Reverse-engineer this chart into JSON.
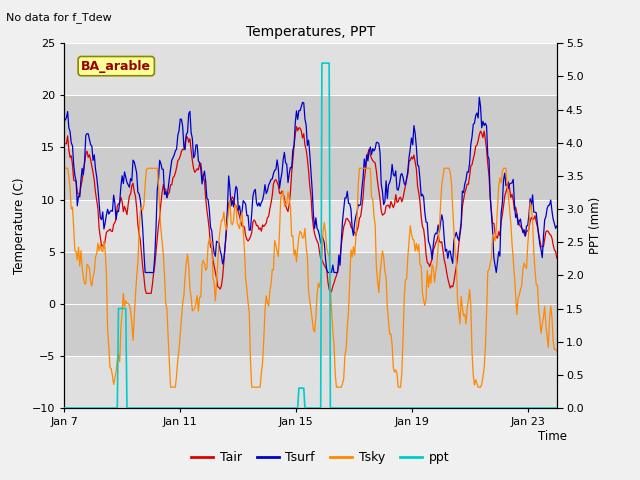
{
  "title": "Temperatures, PPT",
  "top_left_text": "No data for f_Tdew",
  "box_label": "BA_arable",
  "xlabel": "Time",
  "ylabel_left": "Temperature (C)",
  "ylabel_right": "PPT (mm)",
  "ylim_left": [
    -10,
    25
  ],
  "ylim_right": [
    0.0,
    5.5
  ],
  "yticks_left": [
    -10,
    -5,
    0,
    5,
    10,
    15,
    20,
    25
  ],
  "yticks_right": [
    0.0,
    0.5,
    1.0,
    1.5,
    2.0,
    2.5,
    3.0,
    3.5,
    4.0,
    4.5,
    5.0,
    5.5
  ],
  "xtick_labels": [
    "Jan 7",
    "Jan 11",
    "Jan 15",
    "Jan 19",
    "Jan 23"
  ],
  "xtick_positions": [
    0,
    4,
    8,
    12,
    16
  ],
  "xlim": [
    0,
    17
  ],
  "fig_bg": "#f0f0f0",
  "plot_bg": "#e0e0e0",
  "band_color": "#cccccc",
  "tair_color": "#dd0000",
  "tsurf_color": "#0000cc",
  "tsky_color": "#ff8800",
  "ppt_color": "#00cccc",
  "box_text_color": "#990000",
  "box_face": "#ffff99",
  "box_edge": "#888800",
  "seed": 123,
  "n_points": 408
}
